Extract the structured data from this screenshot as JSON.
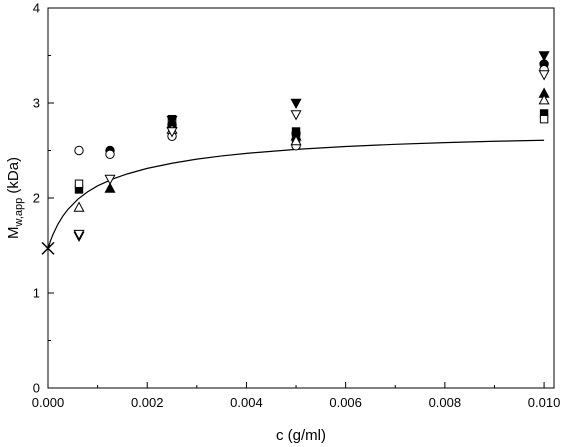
{
  "chart_data": {
    "type": "scatter",
    "title": "",
    "xlabel": "c (g/ml)",
    "ylabel": {
      "main": "M",
      "sub": "w,app",
      "unit": " (kDa)"
    },
    "xlim": [
      0,
      0.0102
    ],
    "ylim": [
      0,
      4
    ],
    "xticks": [
      0.0,
      0.002,
      0.004,
      0.006,
      0.008,
      0.01
    ],
    "xtick_labels": [
      "0.000",
      "0.002",
      "0.004",
      "0.006",
      "0.008",
      "0.010"
    ],
    "yticks": [
      0,
      1,
      2,
      3,
      4
    ],
    "ytick_labels": [
      "0",
      "1",
      "2",
      "3",
      "4"
    ],
    "grid": false,
    "legend": false,
    "series": [
      {
        "marker": "filled-square",
        "x": [
          0.000625,
          0.0025,
          0.005,
          0.01
        ],
        "y": [
          2.09,
          2.8,
          2.7,
          2.89
        ]
      },
      {
        "marker": "open-square",
        "x": [
          0.000625,
          0.0025,
          0.005,
          0.01
        ],
        "y": [
          2.15,
          2.83,
          2.63,
          2.83
        ]
      },
      {
        "marker": "filled-circle",
        "x": [
          0.00125,
          0.0025,
          0.005,
          0.01
        ],
        "y": [
          2.5,
          2.77,
          2.68,
          3.41
        ]
      },
      {
        "marker": "open-circle",
        "x": [
          0.000625,
          0.00125,
          0.0025,
          0.005,
          0.01
        ],
        "y": [
          2.5,
          2.46,
          2.65,
          2.55,
          3.35
        ]
      },
      {
        "marker": "filled-triangle-up",
        "x": [
          0.00125,
          0.0025,
          0.005,
          0.01
        ],
        "y": [
          2.1,
          2.78,
          2.65,
          3.1
        ]
      },
      {
        "marker": "open-triangle-up",
        "x": [
          0.000625,
          0.0025,
          0.005,
          0.01
        ],
        "y": [
          1.9,
          2.72,
          2.6,
          3.03
        ]
      },
      {
        "marker": "filled-triangle-down",
        "x": [
          0.000625,
          0.0025,
          0.005,
          0.01
        ],
        "y": [
          1.6,
          2.82,
          3.0,
          3.5
        ]
      },
      {
        "marker": "open-triangle-down",
        "x": [
          0.000625,
          0.00125,
          0.0025,
          0.005,
          0.01
        ],
        "y": [
          1.62,
          2.2,
          2.7,
          2.88,
          3.3
        ]
      },
      {
        "marker": "cross",
        "x": [
          0.0
        ],
        "y": [
          1.47
        ]
      }
    ],
    "fit_curve": {
      "type": "line",
      "x": [
        0,
        5e-05,
        0.0001,
        0.0002,
        0.0003,
        0.0004,
        0.0006,
        0.0008,
        0.001,
        0.0013,
        0.0016,
        0.002,
        0.0025,
        0.003,
        0.0035,
        0.004,
        0.005,
        0.006,
        0.007,
        0.008,
        0.009,
        0.01
      ],
      "y": [
        1.47,
        1.549,
        1.616,
        1.725,
        1.81,
        1.879,
        1.986,
        2.066,
        2.128,
        2.199,
        2.254,
        2.312,
        2.366,
        2.409,
        2.443,
        2.47,
        2.512,
        2.542,
        2.565,
        2.583,
        2.597,
        2.608
      ]
    }
  }
}
